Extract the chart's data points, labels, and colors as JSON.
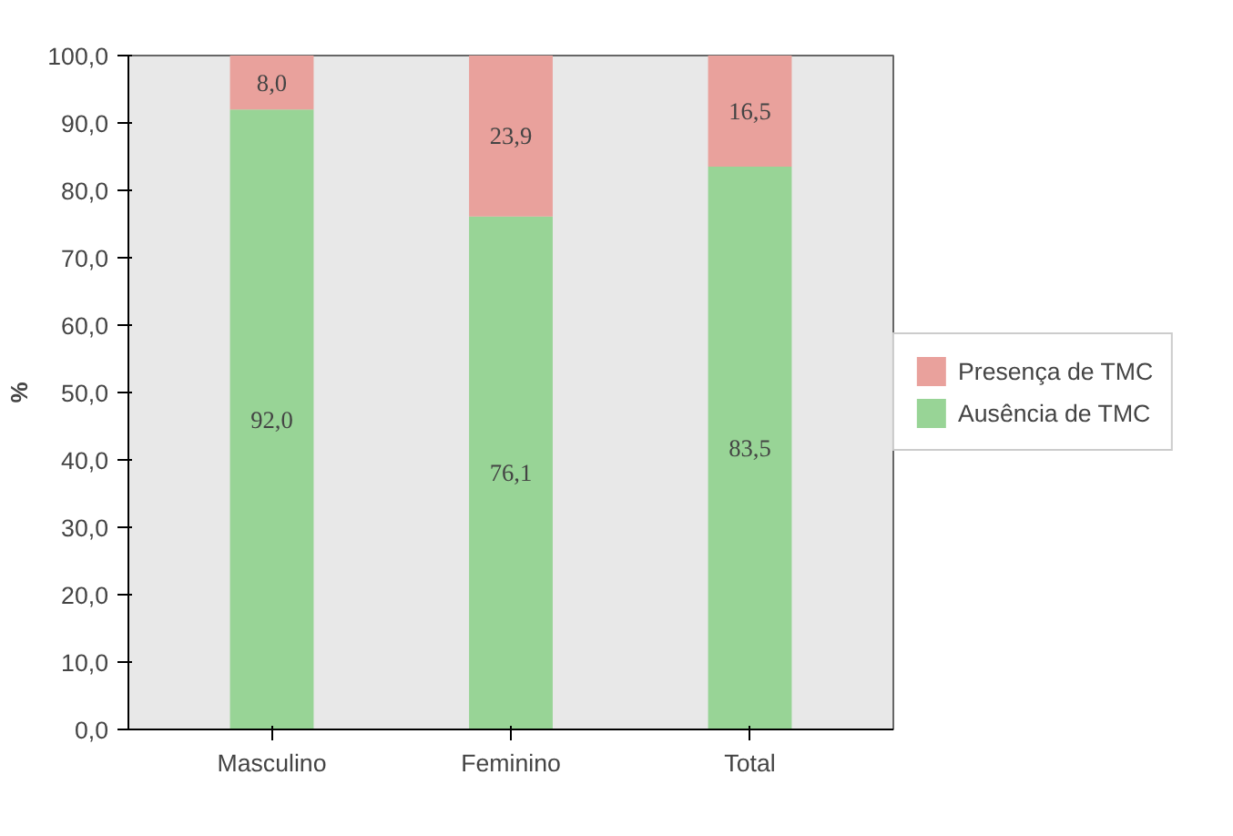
{
  "chart_data": {
    "type": "bar",
    "stacked": true,
    "ylabel": "%",
    "categories": [
      "Masculino",
      "Feminino",
      "Total"
    ],
    "series": [
      {
        "name": "Ausência de TMC",
        "color": "#98d496",
        "values": [
          92.0,
          76.1,
          83.5
        ],
        "value_labels": [
          "92,0",
          "76,1",
          "83,5"
        ]
      },
      {
        "name": "Presença de TMC",
        "color": "#e9a19c",
        "values": [
          8.0,
          23.9,
          16.5
        ],
        "value_labels": [
          "8,0",
          "23,9",
          "16,5"
        ]
      }
    ],
    "ylim": [
      0,
      100
    ],
    "yticks": [
      {
        "value": 0,
        "label": "0,0"
      },
      {
        "value": 10,
        "label": "10,0"
      },
      {
        "value": 20,
        "label": "20,0"
      },
      {
        "value": 30,
        "label": "30,0"
      },
      {
        "value": 40,
        "label": "40,0"
      },
      {
        "value": 50,
        "label": "50,0"
      },
      {
        "value": 60,
        "label": "60,0"
      },
      {
        "value": 70,
        "label": "70,0"
      },
      {
        "value": 80,
        "label": "80,0"
      },
      {
        "value": 90,
        "label": "90,0"
      },
      {
        "value": 100,
        "label": "100,0"
      }
    ],
    "grid": false,
    "legend": "right"
  }
}
